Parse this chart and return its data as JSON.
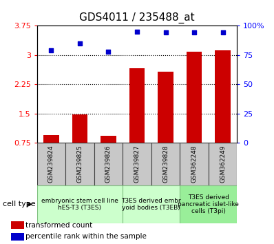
{
  "title": "GDS4011 / 235488_at",
  "samples": [
    "GSM239824",
    "GSM239825",
    "GSM239826",
    "GSM239827",
    "GSM239828",
    "GSM362248",
    "GSM362249"
  ],
  "transformed_count": [
    0.95,
    1.48,
    0.93,
    2.65,
    2.57,
    3.08,
    3.12
  ],
  "percentile_rank": [
    79,
    85,
    78,
    95,
    94,
    94,
    94
  ],
  "ylim_left": [
    0.75,
    3.75
  ],
  "ylim_right": [
    0,
    100
  ],
  "yticks_left": [
    0.75,
    1.5,
    2.25,
    3.0,
    3.75
  ],
  "ytick_labels_left": [
    "0.75",
    "1.5",
    "2.25",
    "3",
    "3.75"
  ],
  "yticks_right": [
    0,
    25,
    50,
    75,
    100
  ],
  "ytick_labels_right": [
    "0",
    "25",
    "50",
    "75",
    "100%"
  ],
  "hlines": [
    1.5,
    2.25,
    3.0
  ],
  "bar_color": "#cc0000",
  "dot_color": "#0000cc",
  "bar_bottom": 0.75,
  "groups": [
    {
      "label": "embryonic stem cell line\nhES-T3 (T3ES)",
      "start": 0,
      "end": 3,
      "color": "#ccffcc"
    },
    {
      "label": "T3ES derived embr\nyoid bodies (T3EB)",
      "start": 3,
      "end": 5,
      "color": "#ccffcc"
    },
    {
      "label": "T3ES derived\npancreatic islet-like\ncells (T3pi)",
      "start": 5,
      "end": 7,
      "color": "#99ee99"
    }
  ],
  "sample_box_color": "#c8c8c8",
  "sample_box_border": "#404040",
  "title_fontsize": 11,
  "tick_fontsize": 8,
  "sample_fontsize": 6.5,
  "group_fontsize": 6.5,
  "legend_fontsize": 7.5
}
